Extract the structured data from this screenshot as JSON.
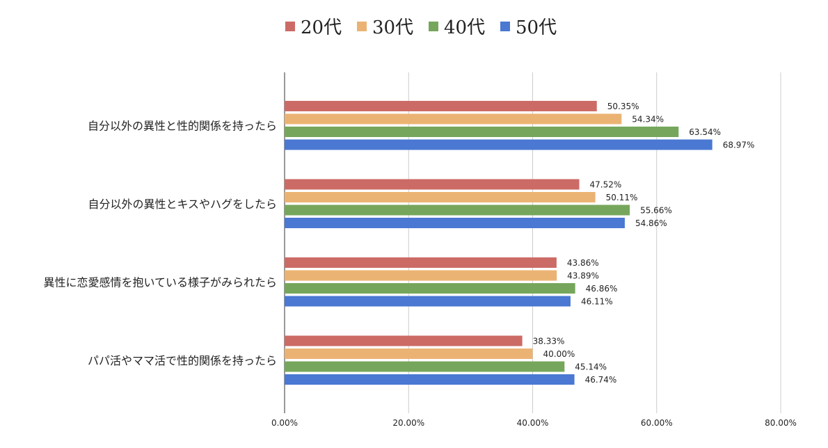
{
  "chart_data": {
    "type": "bar",
    "orientation": "horizontal",
    "title": "",
    "xlabel": "",
    "ylabel": "",
    "categories": [
      "自分以外の異性と性的関係を持ったら",
      "自分以外の異性とキスやハグをしたら",
      "異性に恋愛感情を抱いている様子がみられたら",
      "パパ活やママ活で性的関係を持ったら"
    ],
    "series": [
      {
        "name": "20代",
        "color": "#cc6b66",
        "values": [
          50.35,
          47.52,
          43.86,
          38.33
        ],
        "labels": [
          "50.35%",
          "47.52%",
          "43.86%",
          "38.33%"
        ]
      },
      {
        "name": "30代",
        "color": "#ebb373",
        "values": [
          54.34,
          50.11,
          43.89,
          40.0
        ],
        "labels": [
          "54.34%",
          "50.11%",
          "43.89%",
          "40.00%"
        ]
      },
      {
        "name": "40代",
        "color": "#76a65b",
        "values": [
          63.54,
          55.66,
          46.86,
          45.14
        ],
        "labels": [
          "63.54%",
          "55.66%",
          "46.86%",
          "45.14%"
        ]
      },
      {
        "name": "50代",
        "color": "#4a78d2",
        "values": [
          68.97,
          54.86,
          46.11,
          46.74
        ],
        "labels": [
          "68.97%",
          "54.86%",
          "46.11%",
          "46.74%"
        ]
      }
    ],
    "xlim": [
      0,
      80
    ],
    "ticks": [
      0,
      20,
      40,
      60,
      80
    ],
    "tick_labels": [
      "0.00%",
      "20.00%",
      "40.00%",
      "60.00%",
      "80.00%"
    ],
    "grid": true,
    "legend_position": "top-center"
  }
}
